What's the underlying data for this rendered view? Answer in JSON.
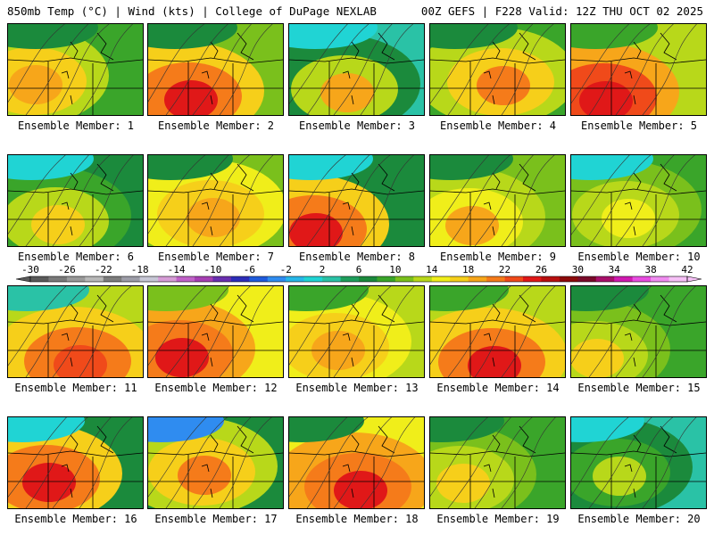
{
  "header": {
    "left": "850mb Temp (°C) | Wind (kts) | College of DuPage NEXLAB",
    "right": "00Z GEFS | F228 Valid: 12Z THU OCT 02 2025"
  },
  "colorbar": {
    "ticks": [
      "-30",
      "-26",
      "-22",
      "-18",
      "-14",
      "-10",
      "-6",
      "-2",
      "2",
      "6",
      "10",
      "14",
      "18",
      "22",
      "26",
      "30",
      "34",
      "38",
      "42"
    ],
    "colors": [
      "#5a5a5a",
      "#7a7a7a",
      "#9a9a9a",
      "#b8b8b8",
      "#7d7d7d",
      "#9d9da8",
      "#c7c7d6",
      "#d69cd6",
      "#c062c8",
      "#a63fb3",
      "#6a2fb0",
      "#2d2db8",
      "#1f5bdc",
      "#2f8cf0",
      "#27b7e8",
      "#20d4d4",
      "#2ac2a6",
      "#1f9e5c",
      "#1b8a3c",
      "#3aa52a",
      "#7ac01c",
      "#b8d81a",
      "#f0ee1a",
      "#f6cf1a",
      "#f7a61a",
      "#f57b1a",
      "#f04a1a",
      "#e01818",
      "#b81010",
      "#8c0a0a",
      "#7a0a2a",
      "#a8106a",
      "#d01ab0",
      "#e84ce0",
      "#f08cf0",
      "#f6c0f6"
    ]
  },
  "members": [
    {
      "label": "Ensemble Member: 1",
      "fill": [
        "#1b8a3c",
        "#3aa52a",
        "#b8d81a",
        "#f6cf1a",
        "#f7a61a"
      ]
    },
    {
      "label": "Ensemble Member: 2",
      "fill": [
        "#1b8a3c",
        "#7ac01c",
        "#f6cf1a",
        "#f57b1a",
        "#e01818"
      ]
    },
    {
      "label": "Ensemble Member: 3",
      "fill": [
        "#20d4d4",
        "#2ac2a6",
        "#1b8a3c",
        "#b8d81a",
        "#f7a61a"
      ]
    },
    {
      "label": "Ensemble Member: 4",
      "fill": [
        "#1b8a3c",
        "#3aa52a",
        "#b8d81a",
        "#f6cf1a",
        "#f57b1a"
      ]
    },
    {
      "label": "Ensemble Member: 5",
      "fill": [
        "#3aa52a",
        "#b8d81a",
        "#f7a61a",
        "#f04a1a",
        "#e01818"
      ]
    },
    {
      "label": "Ensemble Member: 6",
      "fill": [
        "#20d4d4",
        "#1b8a3c",
        "#3aa52a",
        "#b8d81a",
        "#f6cf1a"
      ]
    },
    {
      "label": "Ensemble Member: 7",
      "fill": [
        "#1b8a3c",
        "#7ac01c",
        "#f0ee1a",
        "#f6cf1a",
        "#f7a61a"
      ]
    },
    {
      "label": "Ensemble Member: 8",
      "fill": [
        "#20d4d4",
        "#1b8a3c",
        "#f6cf1a",
        "#f57b1a",
        "#e01818"
      ]
    },
    {
      "label": "Ensemble Member: 9",
      "fill": [
        "#1b8a3c",
        "#7ac01c",
        "#b8d81a",
        "#f0ee1a",
        "#f7a61a"
      ]
    },
    {
      "label": "Ensemble Member: 10",
      "fill": [
        "#20d4d4",
        "#3aa52a",
        "#7ac01c",
        "#b8d81a",
        "#f0ee1a"
      ]
    },
    {
      "label": "Ensemble Member: 11",
      "fill": [
        "#2ac2a6",
        "#b8d81a",
        "#f6cf1a",
        "#f57b1a",
        "#f04a1a"
      ]
    },
    {
      "label": "Ensemble Member: 12",
      "fill": [
        "#7ac01c",
        "#f0ee1a",
        "#f7a61a",
        "#f57b1a",
        "#e01818"
      ]
    },
    {
      "label": "Ensemble Member: 13",
      "fill": [
        "#3aa52a",
        "#b8d81a",
        "#f0ee1a",
        "#f6cf1a",
        "#f7a61a"
      ]
    },
    {
      "label": "Ensemble Member: 14",
      "fill": [
        "#3aa52a",
        "#b8d81a",
        "#f6cf1a",
        "#f57b1a",
        "#e01818"
      ]
    },
    {
      "label": "Ensemble Member: 15",
      "fill": [
        "#1b8a3c",
        "#3aa52a",
        "#7ac01c",
        "#b8d81a",
        "#f6cf1a"
      ]
    },
    {
      "label": "Ensemble Member: 16",
      "fill": [
        "#20d4d4",
        "#1b8a3c",
        "#f6cf1a",
        "#f57b1a",
        "#e01818"
      ]
    },
    {
      "label": "Ensemble Member: 17",
      "fill": [
        "#2f8cf0",
        "#1b8a3c",
        "#b8d81a",
        "#f6cf1a",
        "#f57b1a"
      ]
    },
    {
      "label": "Ensemble Member: 18",
      "fill": [
        "#1b8a3c",
        "#f0ee1a",
        "#f7a61a",
        "#f57b1a",
        "#e01818"
      ]
    },
    {
      "label": "Ensemble Member: 19",
      "fill": [
        "#1b8a3c",
        "#3aa52a",
        "#7ac01c",
        "#b8d81a",
        "#f6cf1a"
      ]
    },
    {
      "label": "Ensemble Member: 20",
      "fill": [
        "#20d4d4",
        "#2ac2a6",
        "#1b8a3c",
        "#3aa52a",
        "#b8d81a"
      ]
    }
  ]
}
